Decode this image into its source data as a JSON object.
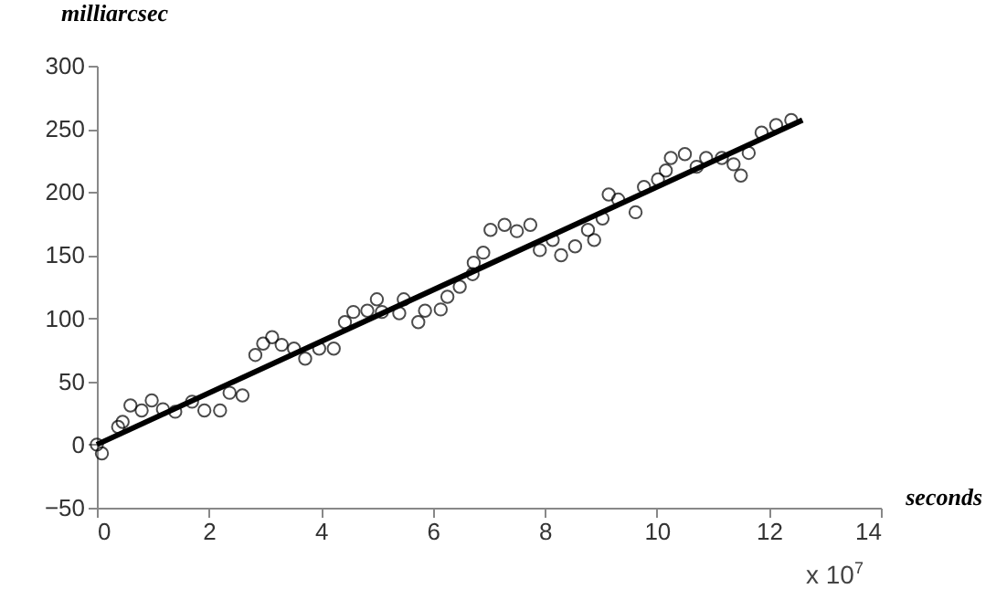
{
  "chart_data": {
    "type": "scatter",
    "xlabel": "seconds",
    "ylabel": "milliarcsec",
    "annotations": [
      "x 10$^{7}$"
    ],
    "xlim": [
      0,
      14
    ],
    "xticks": [
      0,
      2,
      4,
      6,
      8,
      10,
      12,
      14
    ],
    "ylim": [
      -50,
      300
    ],
    "yticks": [
      -50,
      0,
      50,
      100,
      150,
      200,
      250,
      300
    ],
    "grid": false,
    "series": [
      {
        "marker": "circle",
        "color": "#000000",
        "x": [
          0,
          0.09,
          0.38,
          0.46,
          0.6,
          0.8,
          0.98,
          1.18,
          1.4,
          1.7,
          1.92,
          2.2,
          2.37,
          2.6,
          2.83,
          2.97,
          3.13,
          3.3,
          3.52,
          3.72,
          3.97,
          4.23,
          4.43,
          4.58,
          4.83,
          5.0,
          5.09,
          5.4,
          5.48,
          5.74,
          5.86,
          6.14,
          6.26,
          6.48,
          6.71,
          6.73,
          6.9,
          7.03,
          7.28,
          7.5,
          7.74,
          7.91,
          8.14,
          8.29,
          8.54,
          8.77,
          8.88,
          9.03,
          9.14,
          9.31,
          9.62,
          9.77,
          10.02,
          10.16,
          10.25,
          10.5,
          10.71,
          10.88,
          11.16,
          11.37,
          11.5,
          11.64,
          11.87,
          12.13,
          12.4
        ],
        "values": [
          0,
          -7,
          14,
          18,
          31,
          27,
          35,
          28,
          26,
          34,
          27,
          27,
          41,
          39,
          71,
          80,
          85,
          79,
          76,
          68,
          76,
          76,
          97,
          105,
          106,
          115,
          105,
          104,
          115,
          97,
          106,
          107,
          117,
          125,
          135,
          144,
          152,
          170,
          174,
          169,
          174,
          154,
          162,
          150,
          157,
          170,
          162,
          179,
          198,
          194,
          184,
          204,
          210,
          217,
          227,
          230,
          220,
          227,
          227,
          222,
          213,
          231,
          247,
          253,
          257
        ]
      },
      {
        "type": "line",
        "color": "#000000",
        "x": [
          0,
          12.6
        ],
        "values": [
          0,
          257
        ]
      }
    ]
  }
}
